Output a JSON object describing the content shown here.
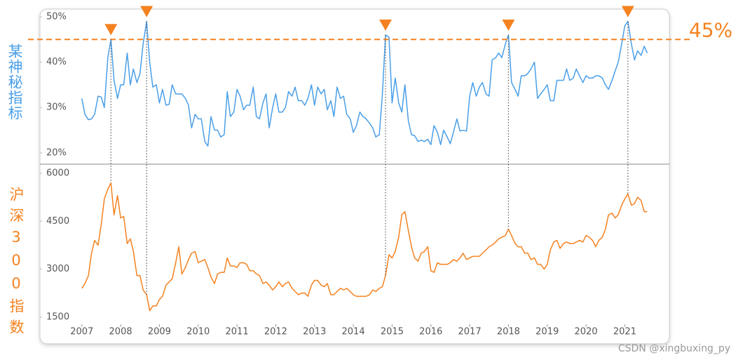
{
  "chart_data": [
    {
      "type": "line",
      "ylabel": "某神秘指标",
      "color": "#4a9fe8",
      "x": [
        2007,
        2007.08,
        2007.17,
        2007.25,
        2007.33,
        2007.42,
        2007.5,
        2007.58,
        2007.67,
        2007.75,
        2007.83,
        2007.92,
        2008,
        2008.08,
        2008.17,
        2008.25,
        2008.33,
        2008.42,
        2008.5,
        2008.58,
        2008.67,
        2008.75,
        2008.83,
        2008.92,
        2009,
        2009.08,
        2009.17,
        2009.25,
        2009.33,
        2009.42,
        2009.5,
        2009.58,
        2009.67,
        2009.75,
        2009.83,
        2009.92,
        2010,
        2010.08,
        2010.17,
        2010.25,
        2010.33,
        2010.42,
        2010.5,
        2010.58,
        2010.67,
        2010.75,
        2010.83,
        2010.92,
        2011,
        2011.08,
        2011.17,
        2011.25,
        2011.33,
        2011.42,
        2011.5,
        2011.58,
        2011.67,
        2011.75,
        2011.83,
        2011.92,
        2012,
        2012.08,
        2012.17,
        2012.25,
        2012.33,
        2012.42,
        2012.5,
        2012.58,
        2012.67,
        2012.75,
        2012.83,
        2012.92,
        2013,
        2013.08,
        2013.17,
        2013.25,
        2013.33,
        2013.42,
        2013.5,
        2013.58,
        2013.67,
        2013.75,
        2013.83,
        2013.92,
        2014,
        2014.08,
        2014.17,
        2014.25,
        2014.33,
        2014.42,
        2014.5,
        2014.58,
        2014.67,
        2014.75,
        2014.83,
        2014.92,
        2015,
        2015.08,
        2015.17,
        2015.25,
        2015.33,
        2015.42,
        2015.5,
        2015.58,
        2015.67,
        2015.75,
        2015.83,
        2015.92,
        2016,
        2016.08,
        2016.17,
        2016.25,
        2016.33,
        2016.42,
        2016.5,
        2016.58,
        2016.67,
        2016.75,
        2016.83,
        2016.92,
        2017,
        2017.08,
        2017.17,
        2017.25,
        2017.33,
        2017.42,
        2017.5,
        2017.58,
        2017.67,
        2017.75,
        2017.83,
        2017.92,
        2018,
        2018.08,
        2018.17,
        2018.25,
        2018.33,
        2018.42,
        2018.5,
        2018.58,
        2018.67,
        2018.75,
        2018.83,
        2018.92,
        2019,
        2019.08,
        2019.17,
        2019.25,
        2019.33,
        2019.42,
        2019.5,
        2019.58,
        2019.67,
        2019.75,
        2019.83,
        2019.92,
        2020,
        2020.08,
        2020.17,
        2020.25,
        2020.33,
        2020.42,
        2020.5,
        2020.58,
        2020.67,
        2020.75,
        2020.83,
        2020.92,
        2021,
        2021.08,
        2021.17,
        2021.25,
        2021.33,
        2021.42,
        2021.5,
        2021.58
      ],
      "values": [
        32,
        28.5,
        27.3,
        27.5,
        28.5,
        32.5,
        32.3,
        30,
        41,
        45,
        36,
        32,
        35,
        35,
        42,
        35,
        38.5,
        35.5,
        37.5,
        44,
        49,
        40,
        34.5,
        35,
        31,
        34,
        30.5,
        30.7,
        35,
        33,
        33,
        33,
        32,
        30.5,
        25.5,
        28.5,
        27.5,
        27.5,
        22.5,
        21.5,
        28,
        25,
        25,
        23.5,
        24,
        33.5,
        28,
        29,
        34,
        32.5,
        29.5,
        30.5,
        30.5,
        34.5,
        28,
        27.5,
        31,
        33,
        25.5,
        30,
        33,
        29,
        29,
        30,
        33.5,
        32.5,
        34.5,
        31.5,
        31.5,
        30.5,
        32,
        35,
        30.5,
        34.5,
        33,
        34,
        29.5,
        31.5,
        28,
        34.5,
        32,
        32.5,
        28.5,
        27.5,
        24.5,
        26,
        29,
        28,
        27.5,
        26.5,
        25.5,
        23.5,
        24,
        33,
        46,
        45.5,
        31,
        36.5,
        31,
        29,
        35,
        27,
        24,
        23.8,
        22.5,
        22.8,
        22.5,
        23,
        21.8,
        26,
        24.5,
        21.8,
        25,
        23.5,
        22,
        24.5,
        27.5,
        24.8,
        25,
        24.8,
        32.5,
        35.5,
        32.5,
        34.5,
        35.5,
        33,
        32.5,
        40.5,
        41,
        42,
        41,
        44,
        46,
        35.5,
        34,
        32.5,
        37,
        37,
        37.5,
        38.5,
        40,
        32,
        33,
        34,
        35,
        31.5,
        31.5,
        36,
        36,
        36,
        38.5,
        36,
        36.5,
        38.5,
        37,
        35.5,
        37,
        36.5,
        36.5,
        37,
        37,
        36.5,
        35,
        34,
        36,
        38,
        40,
        44,
        48,
        49,
        44,
        40.5,
        42.5,
        41.5,
        43.5,
        42
      ],
      "xlim": [
        2005.92,
        2022.15
      ],
      "ylim": [
        17.5,
        51.7
      ],
      "yticks": [
        {
          "value": 20,
          "label": "20%"
        },
        {
          "value": 30,
          "label": "30%"
        },
        {
          "value": 40,
          "label": "40%"
        },
        {
          "value": 50,
          "label": "50%"
        }
      ],
      "threshold": {
        "value": 45,
        "label": "45%",
        "color": "#f58220"
      },
      "peaks": [
        2007.75,
        2008.67,
        2014.83,
        2018,
        2021.08
      ],
      "peak_color": "#f58220"
    },
    {
      "type": "line",
      "ylabel": "沪深300指数",
      "color": "#f58220",
      "x": [
        2007,
        2007.08,
        2007.17,
        2007.25,
        2007.33,
        2007.42,
        2007.5,
        2007.58,
        2007.67,
        2007.75,
        2007.83,
        2007.92,
        2008,
        2008.08,
        2008.17,
        2008.25,
        2008.33,
        2008.42,
        2008.5,
        2008.58,
        2008.67,
        2008.75,
        2008.83,
        2008.92,
        2009,
        2009.08,
        2009.17,
        2009.25,
        2009.33,
        2009.42,
        2009.5,
        2009.58,
        2009.67,
        2009.75,
        2009.83,
        2009.92,
        2010,
        2010.08,
        2010.17,
        2010.25,
        2010.33,
        2010.42,
        2010.5,
        2010.58,
        2010.67,
        2010.75,
        2010.83,
        2010.92,
        2011,
        2011.08,
        2011.17,
        2011.25,
        2011.33,
        2011.42,
        2011.5,
        2011.58,
        2011.67,
        2011.75,
        2011.83,
        2011.92,
        2012,
        2012.08,
        2012.17,
        2012.25,
        2012.33,
        2012.42,
        2012.5,
        2012.58,
        2012.67,
        2012.75,
        2012.83,
        2012.92,
        2013,
        2013.08,
        2013.17,
        2013.25,
        2013.33,
        2013.42,
        2013.5,
        2013.58,
        2013.67,
        2013.75,
        2013.83,
        2013.92,
        2014,
        2014.08,
        2014.17,
        2014.25,
        2014.33,
        2014.42,
        2014.5,
        2014.58,
        2014.67,
        2014.75,
        2014.83,
        2014.92,
        2015,
        2015.08,
        2015.17,
        2015.25,
        2015.33,
        2015.42,
        2015.5,
        2015.58,
        2015.67,
        2015.75,
        2015.83,
        2015.92,
        2016,
        2016.08,
        2016.17,
        2016.25,
        2016.33,
        2016.42,
        2016.5,
        2016.58,
        2016.67,
        2016.75,
        2016.83,
        2016.92,
        2017,
        2017.08,
        2017.17,
        2017.25,
        2017.33,
        2017.42,
        2017.5,
        2017.58,
        2017.67,
        2017.75,
        2017.83,
        2017.92,
        2018,
        2018.08,
        2018.17,
        2018.25,
        2018.33,
        2018.42,
        2018.5,
        2018.58,
        2018.67,
        2018.75,
        2018.83,
        2018.92,
        2019,
        2019.08,
        2019.17,
        2019.25,
        2019.33,
        2019.42,
        2019.5,
        2019.58,
        2019.67,
        2019.75,
        2019.83,
        2019.92,
        2020,
        2020.08,
        2020.17,
        2020.25,
        2020.33,
        2020.42,
        2020.5,
        2020.58,
        2020.67,
        2020.75,
        2020.83,
        2020.92,
        2021,
        2021.08,
        2021.17,
        2021.25,
        2021.33,
        2021.42,
        2021.5,
        2021.58
      ],
      "values": [
        2400,
        2550,
        2800,
        3500,
        3900,
        3750,
        4400,
        5200,
        5500,
        5700,
        4700,
        5300,
        4600,
        4650,
        3800,
        3950,
        3550,
        2800,
        2800,
        2350,
        2200,
        1700,
        1850,
        1850,
        2050,
        2150,
        2500,
        2600,
        2700,
        3200,
        3700,
        2850,
        3050,
        3300,
        3500,
        3550,
        3200,
        3250,
        3300,
        3050,
        2750,
        2550,
        2850,
        2900,
        2900,
        3350,
        3100,
        3100,
        3050,
        3200,
        3200,
        3150,
        2950,
        2950,
        2850,
        2800,
        2550,
        2600,
        2500,
        2350,
        2450,
        2600,
        2450,
        2550,
        2600,
        2400,
        2300,
        2200,
        2250,
        2250,
        2150,
        2500,
        2650,
        2650,
        2500,
        2450,
        2550,
        2200,
        2200,
        2300,
        2400,
        2350,
        2400,
        2300,
        2200,
        2150,
        2150,
        2150,
        2150,
        2200,
        2350,
        2300,
        2400,
        2450,
        2800,
        3450,
        3350,
        3550,
        4000,
        4700,
        4800,
        4200,
        3700,
        3350,
        3250,
        3500,
        3550,
        3700,
        2950,
        2900,
        3200,
        3150,
        3150,
        3150,
        3200,
        3300,
        3250,
        3350,
        3500,
        3300,
        3350,
        3400,
        3400,
        3400,
        3500,
        3600,
        3700,
        3750,
        3850,
        3950,
        4000,
        4050,
        4250,
        4050,
        3800,
        3700,
        3700,
        3500,
        3500,
        3300,
        3350,
        3150,
        3150,
        3000,
        3150,
        3600,
        3850,
        3900,
        3650,
        3800,
        3850,
        3800,
        3800,
        3850,
        3900,
        3850,
        4050,
        4000,
        3900,
        3700,
        3900,
        4000,
        4250,
        4700,
        4750,
        4600,
        4700,
        5000,
        5200,
        5350,
        5000,
        5050,
        5250,
        5150,
        4800,
        4800
      ],
      "xlim": [
        2005.92,
        2022.15
      ],
      "ylim": [
        1280,
        6285
      ],
      "yticks": [
        1500,
        3000,
        4500,
        6000
      ],
      "xticks": [
        2007,
        2008,
        2009,
        2010,
        2011,
        2012,
        2013,
        2014,
        2015,
        2016,
        2017,
        2018,
        2019,
        2020,
        2021
      ]
    }
  ],
  "watermark": "CSDN @xingbuxing_py"
}
